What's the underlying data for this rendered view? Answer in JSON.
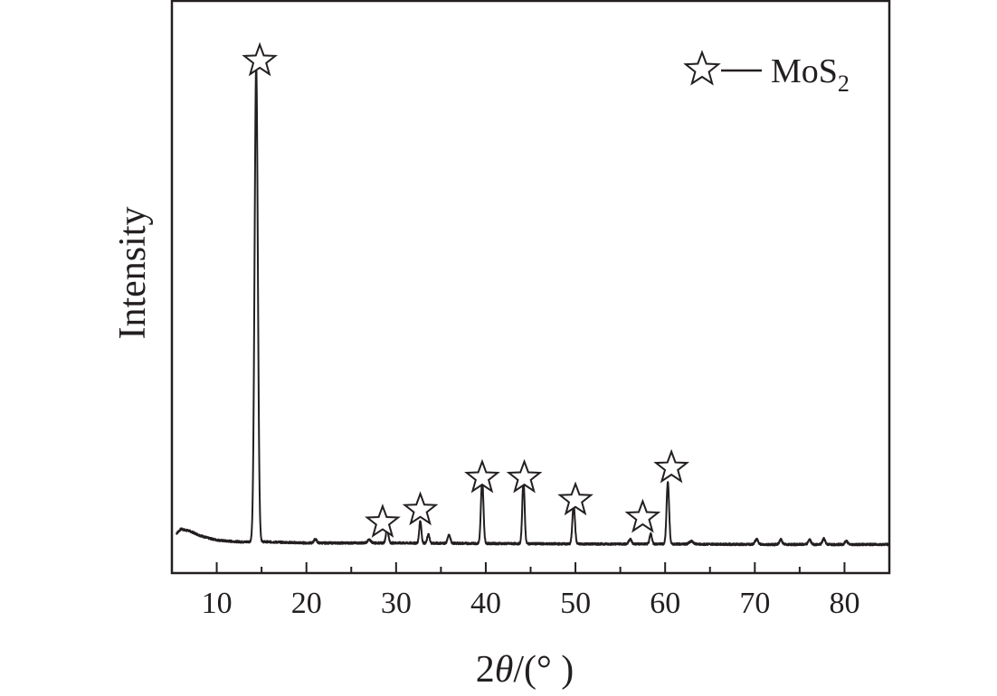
{
  "chart_data": {
    "type": "line",
    "xlabel_prefix": "2",
    "xlabel_symbol": "θ",
    "xlabel_suffix": "/(° )",
    "ylabel": "Intensity",
    "xlim": [
      5,
      85
    ],
    "ylim": [
      0,
      1.04
    ],
    "x_ticks": [
      10,
      20,
      30,
      40,
      50,
      60,
      70,
      80
    ],
    "y_ticks_shown": false,
    "grid": false,
    "legend": {
      "position": "top-right",
      "marker": "star",
      "label_main": "MoS",
      "label_sub": "2"
    },
    "series": [
      {
        "color": "#231f20",
        "baseline": [
          [
            5.5,
            0.025
          ],
          [
            6.0,
            0.034
          ],
          [
            7.0,
            0.03
          ],
          [
            8.0,
            0.022
          ],
          [
            9.0,
            0.016
          ],
          [
            10.0,
            0.012
          ],
          [
            11.0,
            0.01
          ],
          [
            12.0,
            0.009
          ],
          [
            13.0,
            0.008
          ],
          [
            14.0,
            0.009
          ],
          [
            20.0,
            0.006
          ],
          [
            30.0,
            0.006
          ],
          [
            40.0,
            0.005
          ],
          [
            50.0,
            0.004
          ],
          [
            60.0,
            0.004
          ],
          [
            70.0,
            0.003
          ],
          [
            80.0,
            0.003
          ],
          [
            85.0,
            0.003
          ]
        ],
        "peaks": [
          [
            14.4,
            0.96,
            0.18
          ],
          [
            21.0,
            0.008,
            0.15
          ],
          [
            27.0,
            0.006,
            0.2
          ],
          [
            29.0,
            0.028,
            0.14
          ],
          [
            32.7,
            0.045,
            0.12
          ],
          [
            33.6,
            0.018,
            0.12
          ],
          [
            35.9,
            0.016,
            0.15
          ],
          [
            39.6,
            0.128,
            0.14
          ],
          [
            44.2,
            0.128,
            0.13
          ],
          [
            49.8,
            0.08,
            0.14
          ],
          [
            56.1,
            0.01,
            0.15
          ],
          [
            58.4,
            0.02,
            0.13
          ],
          [
            60.3,
            0.125,
            0.14
          ],
          [
            62.9,
            0.006,
            0.2
          ],
          [
            70.2,
            0.01,
            0.18
          ],
          [
            72.9,
            0.01,
            0.15
          ],
          [
            76.1,
            0.01,
            0.15
          ],
          [
            77.7,
            0.012,
            0.15
          ],
          [
            80.2,
            0.007,
            0.15
          ]
        ]
      }
    ],
    "star_markers": [
      [
        14.8,
        0.97
      ],
      [
        28.5,
        0.04
      ],
      [
        32.7,
        0.065
      ],
      [
        39.6,
        0.13
      ],
      [
        44.3,
        0.13
      ],
      [
        50.0,
        0.085
      ],
      [
        57.5,
        0.05
      ],
      [
        60.7,
        0.15
      ]
    ]
  }
}
